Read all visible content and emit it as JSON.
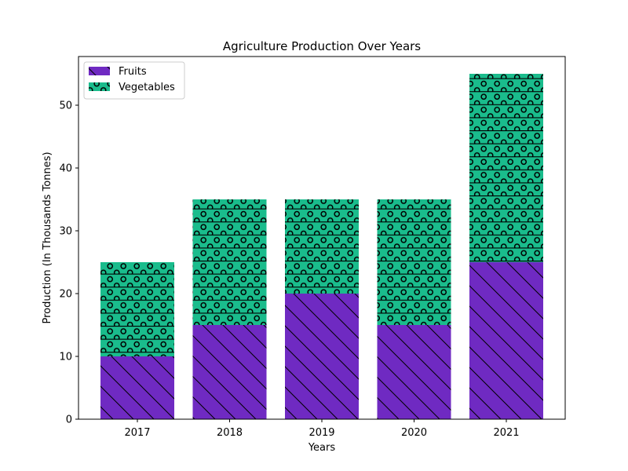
{
  "chart_data": {
    "type": "bar",
    "stacked": true,
    "title": "Agriculture Production Over Years",
    "xlabel": "Years",
    "ylabel": "Production (In Thousands Tonnes)",
    "categories": [
      "2017",
      "2018",
      "2019",
      "2020",
      "2021"
    ],
    "ylim": [
      0,
      57.75
    ],
    "yticks": [
      0,
      10,
      20,
      30,
      40,
      50
    ],
    "grid": false,
    "legend_position": "top-left",
    "series": [
      {
        "name": "Fruits",
        "values": [
          10,
          15,
          20,
          15,
          25
        ],
        "color": "#6f2ac2",
        "hatch": "diagonal-backslash"
      },
      {
        "name": "Vegetables",
        "values": [
          15,
          20,
          15,
          20,
          30
        ],
        "color": "#1abc8c",
        "hatch": "horizontal-lines-circles"
      }
    ]
  }
}
